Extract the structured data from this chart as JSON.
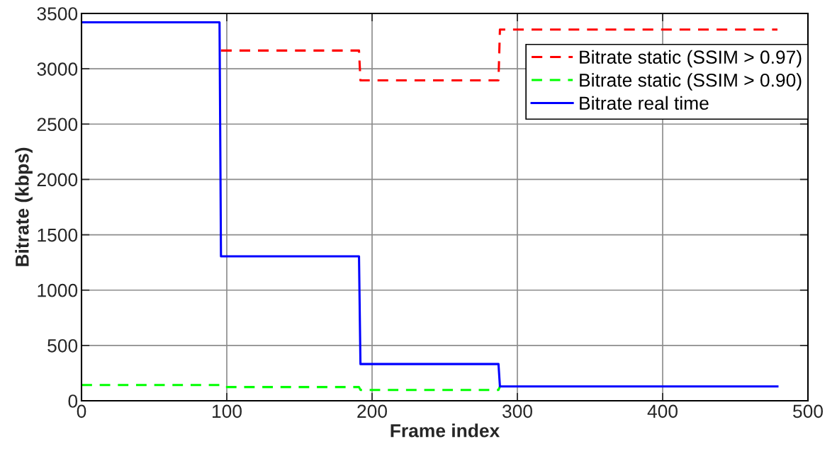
{
  "chart_data": {
    "type": "line",
    "xlabel": "Frame index",
    "ylabel": "Bitrate (kbps)",
    "xlim": [
      0,
      500
    ],
    "xticks": [
      0,
      100,
      200,
      300,
      400,
      500
    ],
    "ylim": [
      0,
      3500
    ],
    "yticks": [
      0,
      500,
      1000,
      1500,
      2000,
      2500,
      3000,
      3500
    ],
    "grid": true,
    "legend": "top right",
    "series": [
      {
        "name": "Bitrate static (SSIM > 0.97)",
        "color": "#ff0000",
        "line_style": "dashed",
        "x": [
          96,
          191,
          192,
          287,
          288,
          479
        ],
        "values": [
          3165,
          3165,
          2895,
          2895,
          3355,
          3355
        ]
      },
      {
        "name": "Bitrate static (SSIM > 0.90)",
        "color": "#00ff00",
        "line_style": "dashed",
        "x": [
          0,
          95,
          96,
          191,
          192,
          287,
          288
        ],
        "values": [
          142,
          142,
          124,
          124,
          98,
          98,
          129
        ]
      },
      {
        "name": "Bitrate real time",
        "color": "#0000ff",
        "line_style": "solid",
        "x": [
          0,
          95,
          96,
          191,
          192,
          287,
          288,
          479
        ],
        "values": [
          3420,
          3420,
          1305,
          1305,
          332,
          332,
          129,
          129
        ]
      }
    ]
  }
}
